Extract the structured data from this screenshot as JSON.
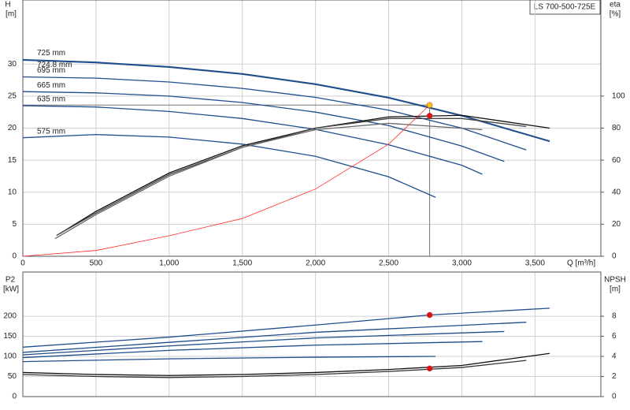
{
  "chart_data": [
    {
      "type": "line",
      "title": "LS 700-500-725E",
      "x_label": "Q [m³/h]",
      "y_label": "H",
      "y_unit": "[m]",
      "y2_label": "eta",
      "y2_unit": "[%]",
      "xlim": [
        0,
        3950
      ],
      "ylim": [
        0,
        40
      ],
      "y2lim": [
        0,
        160
      ],
      "grid": true,
      "xticks": [
        0,
        500,
        {
          "value": 1000,
          "label": "1,000"
        },
        {
          "value": 1500,
          "label": "1,500"
        },
        {
          "value": 2000,
          "label": "2,000"
        },
        {
          "value": 2500,
          "label": "2,500"
        },
        {
          "value": 3000,
          "label": "3,000"
        },
        {
          "value": 3500,
          "label": "3,500"
        }
      ],
      "yticks": [
        0,
        5,
        10,
        15,
        20,
        25,
        30
      ],
      "y2ticks": [
        0,
        20,
        40,
        60,
        80,
        100
      ],
      "series": [
        {
          "name": "725 mm",
          "color": "#1f4e8c",
          "x": [
            0,
            500,
            1000,
            1500,
            2000,
            2500,
            3000,
            3600
          ],
          "values": [
            30.7,
            30.3,
            29.6,
            28.5,
            26.9,
            24.8,
            22.0,
            18.0
          ]
        },
        {
          "name": "724.8 mm",
          "color": "#1f4e8c",
          "x": [
            0,
            500,
            1000,
            1500,
            2000,
            2500,
            3000,
            3600
          ],
          "values": [
            30.6,
            30.2,
            29.5,
            28.4,
            26.8,
            24.7,
            21.9,
            17.9
          ]
        },
        {
          "name": "695 mm",
          "color": "#1f4e8c",
          "x": [
            0,
            500,
            1000,
            1500,
            2000,
            2500,
            3000,
            3440
          ],
          "values": [
            28.0,
            27.8,
            27.2,
            26.2,
            24.8,
            22.8,
            20.0,
            16.6
          ]
        },
        {
          "name": "665 mm",
          "color": "#1f4e8c",
          "x": [
            0,
            500,
            1000,
            1500,
            2000,
            2500,
            3000,
            3290
          ],
          "values": [
            25.7,
            25.5,
            25.0,
            24.0,
            22.5,
            20.4,
            17.2,
            14.8
          ]
        },
        {
          "name": "635 mm",
          "color": "#1f4e8c",
          "x": [
            0,
            500,
            1000,
            1500,
            2000,
            2500,
            3000,
            3140
          ],
          "values": [
            23.5,
            23.3,
            22.6,
            21.5,
            19.8,
            17.4,
            14.2,
            12.8
          ]
        },
        {
          "name": "575 mm",
          "color": "#1f4e8c",
          "x": [
            0,
            500,
            1000,
            1500,
            2000,
            2500,
            2820
          ],
          "values": [
            18.5,
            19.0,
            18.6,
            17.5,
            15.6,
            12.4,
            9.2
          ]
        },
        {
          "color": "#111111",
          "axis": "y2",
          "x": [
            250,
            500,
            1000,
            1500,
            2000,
            2500,
            3000,
            3600
          ],
          "values": [
            14,
            28,
            52,
            69,
            80,
            87,
            88,
            80
          ]
        },
        {
          "color": "#444444",
          "axis": "y2",
          "x": [
            230,
            500,
            1000,
            1500,
            2000,
            2500,
            3000,
            3440
          ],
          "values": [
            13,
            27,
            51,
            68,
            80,
            86,
            86,
            81
          ]
        },
        {
          "color": "#666666",
          "axis": "y2",
          "x": [
            220,
            500,
            1000,
            1500,
            2000,
            2500,
            3140
          ],
          "values": [
            11,
            26,
            50,
            68,
            79,
            83,
            79
          ]
        },
        {
          "color": "#ff2a2a",
          "x": [
            0,
            500,
            1000,
            1500,
            2000,
            2500,
            2780
          ],
          "values": [
            0,
            0.9,
            3.2,
            5.9,
            10.5,
            17.5,
            23.6
          ]
        }
      ],
      "markers": [
        {
          "x": 2780,
          "y": 23.6,
          "color": "#f5c518"
        },
        {
          "x": 2780,
          "y": 87.7,
          "color": "#e01010",
          "axis": "y2"
        }
      ],
      "hline": 23.6,
      "vline": 2780
    },
    {
      "type": "line",
      "y_label": "P2",
      "y_unit": "[kW]",
      "y2_label": "NPSH",
      "y2_unit": "[m]",
      "xlim": [
        0,
        3950
      ],
      "ylim": [
        0,
        310
      ],
      "y2lim": [
        0,
        12.4
      ],
      "grid": true,
      "xticks": [
        0,
        500,
        1000,
        1500,
        2000,
        2500,
        3000,
        3500
      ],
      "yticks": [
        0,
        50,
        100,
        150,
        200
      ],
      "y2ticks": [
        0,
        2,
        4,
        6,
        8
      ],
      "series": [
        {
          "color": "#1f4e8c",
          "x": [
            0,
            1000,
            2000,
            2780,
            3600
          ],
          "values": [
            123,
            148,
            178,
            203,
            220
          ]
        },
        {
          "color": "#1f4e8c",
          "x": [
            0,
            1000,
            2000,
            3440
          ],
          "values": [
            110,
            135,
            160,
            185
          ]
        },
        {
          "color": "#1f4e8c",
          "x": [
            0,
            1000,
            2000,
            3290
          ],
          "values": [
            104,
            126,
            146,
            162
          ]
        },
        {
          "color": "#1f4e8c",
          "x": [
            0,
            1000,
            2000,
            3140
          ],
          "values": [
            97,
            115,
            128,
            137
          ]
        },
        {
          "color": "#1f4e8c",
          "x": [
            0,
            1000,
            2000,
            2820
          ],
          "values": [
            87,
            94,
            98,
            100
          ]
        },
        {
          "color": "#111111",
          "axis": "y2",
          "x": [
            0,
            500,
            1000,
            1500,
            2000,
            2500,
            3000,
            3600
          ],
          "values": [
            2.4,
            2.2,
            2.1,
            2.2,
            2.4,
            2.7,
            3.1,
            4.3
          ]
        },
        {
          "color": "#333333",
          "axis": "y2",
          "x": [
            0,
            500,
            1000,
            1500,
            2000,
            2500,
            3000,
            3440
          ],
          "values": [
            2.2,
            2.0,
            1.9,
            2.0,
            2.2,
            2.5,
            2.9,
            3.6
          ]
        }
      ],
      "markers": [
        {
          "x": 2780,
          "y": 203,
          "color": "#e01010"
        },
        {
          "x": 2780,
          "y": 2.8,
          "color": "#e01010",
          "axis": "y2"
        }
      ]
    }
  ]
}
